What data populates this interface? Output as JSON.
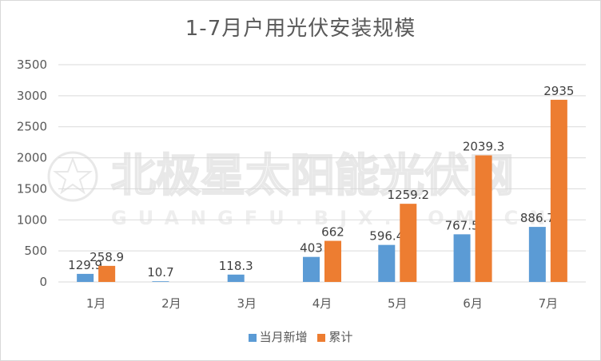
{
  "chart_data": {
    "type": "bar",
    "title": "1-7月户用光伏安装规模",
    "categories": [
      "1月",
      "2月",
      "3月",
      "4月",
      "5月",
      "6月",
      "7月"
    ],
    "series": [
      {
        "name": "当月新增",
        "values": [
          129.9,
          10.7,
          118.3,
          403,
          596.4,
          767.5,
          886.7
        ],
        "labels": [
          "129.9",
          "10.7",
          "118.3",
          "403",
          "596.4",
          "767.5",
          "886.7"
        ],
        "color": "#5b9bd5"
      },
      {
        "name": "累计",
        "values": [
          258.9,
          null,
          null,
          662,
          1259.2,
          2039.3,
          2935
        ],
        "labels": [
          "258.9",
          "",
          "",
          "662",
          "1259.2",
          "2039.3",
          "2935"
        ],
        "color": "#ed7d31"
      }
    ],
    "yticks": [
      "0",
      "500",
      "1000",
      "1500",
      "2000",
      "2500",
      "3000",
      "3500"
    ],
    "ylim": [
      0,
      3500
    ],
    "grid": true,
    "legend": "bottom"
  },
  "watermark": {
    "text_cn": "北极星太阳能光伏网",
    "text_en": "GUANGFU.BJX.COM.CN"
  }
}
